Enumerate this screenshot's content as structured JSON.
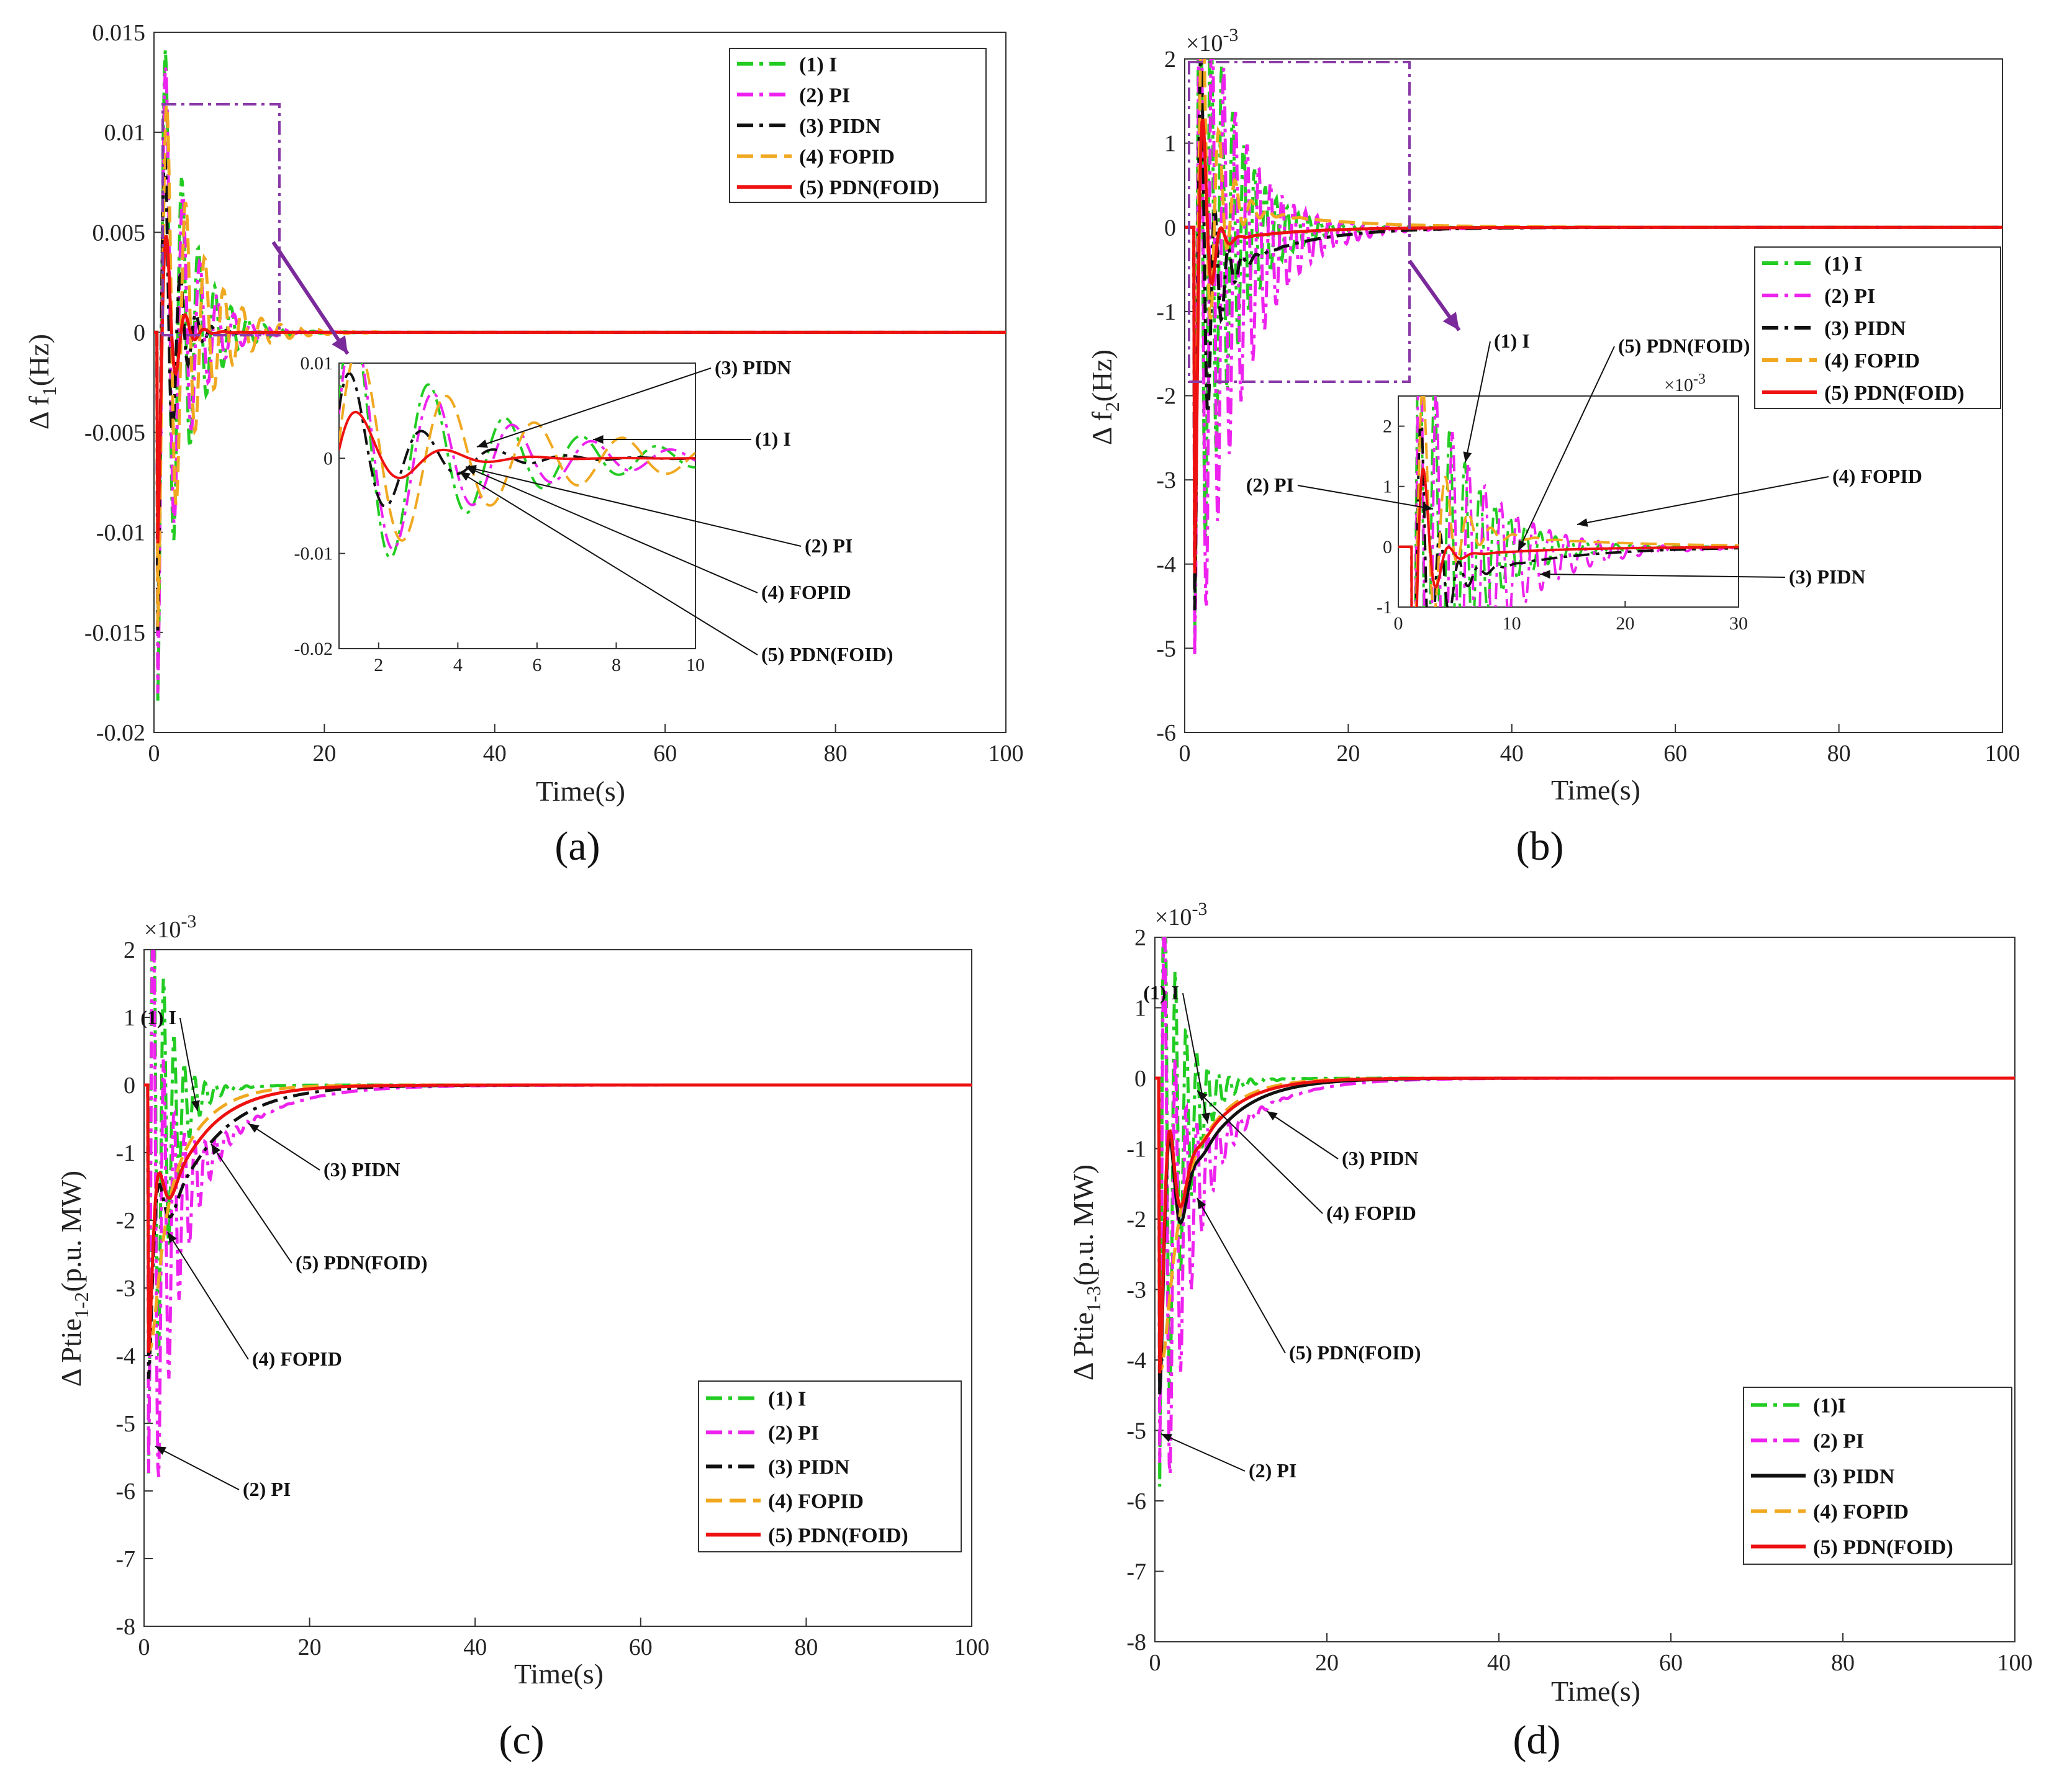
{
  "figure": {
    "colors": {
      "I": "#22cc22",
      "PI": "#ee22ee",
      "PIDN": "#111111",
      "FOPID": "#f0a820",
      "PDN(FOID)": "#ee1111",
      "zoom_box": "#8a3aa8",
      "zoom_arrow": "#7a2a9a"
    }
  },
  "chart_data": [
    {
      "id": "a",
      "type": "line",
      "panel_label": "(a)",
      "xlabel": "Time(s)",
      "ylabel": "Δ f",
      "ylabel_sub": "1",
      "ylabel_unit": "(Hz)",
      "exponent": "",
      "xlim": [
        0,
        100
      ],
      "ylim": [
        -0.02,
        0.015
      ],
      "xticks": [
        0,
        20,
        40,
        60,
        80,
        100
      ],
      "xtick_labels": [
        "0",
        "20",
        "40",
        "60",
        "80",
        "100"
      ],
      "yticks": [
        -0.02,
        -0.015,
        -0.01,
        -0.005,
        0,
        0.005,
        0.01,
        0.015
      ],
      "ytick_labels": [
        "-0.02",
        "-0.015",
        "-0.01",
        "-0.005",
        "0",
        "0.005",
        "0.01",
        "0.015"
      ],
      "legend": {
        "position": "top-right",
        "entries": [
          "(1) I",
          "(2) PI",
          "(3) PIDN",
          "(4) FOPID",
          "(5) PDN(FOID)"
        ]
      },
      "series": [
        {
          "name": "(1) I",
          "key": "I",
          "dash": "dashdot",
          "amp": -0.019,
          "t0": 0.4,
          "freq": 0.52,
          "tau": 3.2,
          "bias_amp": 0,
          "bias_tau": 1
        },
        {
          "name": "(2) PI",
          "key": "PI",
          "dash": "dashdot",
          "amp": -0.0185,
          "t0": 0.4,
          "freq": 0.5,
          "tau": 3.0,
          "bias_amp": 0,
          "bias_tau": 1
        },
        {
          "name": "(3) PIDN",
          "key": "PIDN",
          "dash": "dashdot",
          "amp": -0.0155,
          "t0": 0.4,
          "freq": 0.55,
          "tau": 1.6,
          "bias_amp": 0,
          "bias_tau": 1
        },
        {
          "name": "(4) FOPID",
          "key": "FOPID",
          "dash": "dashed",
          "amp": -0.015,
          "t0": 0.4,
          "freq": 0.45,
          "tau": 4.0,
          "bias_amp": 0,
          "bias_tau": 1
        },
        {
          "name": "(5) PDN(FOID)",
          "key": "PDN(FOID)",
          "dash": "solid",
          "amp": -0.011,
          "t0": 0.4,
          "freq": 0.45,
          "tau": 1.3,
          "bias_amp": 0,
          "bias_tau": 1
        }
      ],
      "inset": {
        "xlim": [
          1,
          10
        ],
        "ylim": [
          -0.02,
          0.01
        ],
        "xticks": [
          2,
          4,
          6,
          8,
          10
        ],
        "xtick_labels": [
          "2",
          "4",
          "6",
          "8",
          "10"
        ],
        "yticks": [
          -0.02,
          -0.01,
          0,
          0.01
        ],
        "ytick_labels": [
          "-0.02",
          "-0.01",
          "0",
          "0.01"
        ],
        "exponent": ""
      },
      "annotations": [
        "(3) PIDN",
        "(1) I",
        "(2) PI",
        "(4) FOPID",
        "(5) PDN(FOID)"
      ]
    },
    {
      "id": "b",
      "type": "line",
      "panel_label": "(b)",
      "xlabel": "Time(s)",
      "ylabel": "Δ f",
      "ylabel_sub": "2",
      "ylabel_unit": "(Hz)",
      "exponent": "×10",
      "exponent_power": "-3",
      "xlim": [
        0,
        100
      ],
      "ylim": [
        -6,
        2
      ],
      "xticks": [
        0,
        20,
        40,
        60,
        80,
        100
      ],
      "xtick_labels": [
        "0",
        "20",
        "40",
        "60",
        "80",
        "100"
      ],
      "yticks": [
        -6,
        -5,
        -4,
        -3,
        -2,
        -1,
        0,
        1,
        2
      ],
      "ytick_labels": [
        "-6",
        "-5",
        "-4",
        "-3",
        "-2",
        "-1",
        "0",
        "1",
        "2"
      ],
      "legend": {
        "position": "right",
        "entries": [
          "(1) I",
          "(2) PI",
          "(3) PIDN",
          "(4) FOPID",
          "(5) PDN(FOID)"
        ]
      },
      "series": [
        {
          "name": "(1) I",
          "key": "I",
          "dash": "dashdot",
          "amp": -4.9,
          "t0": 1.2,
          "freq": 0.75,
          "tau": 4.0,
          "bias_amp": -0.3,
          "bias_tau": 6
        },
        {
          "name": "(2) PI",
          "key": "PI",
          "dash": "dashdot",
          "amp": -5.1,
          "t0": 1.2,
          "freq": 0.7,
          "tau": 5.0,
          "bias_amp": -1.0,
          "bias_tau": 7
        },
        {
          "name": "(3) PIDN",
          "key": "PIDN",
          "dash": "dashdot",
          "amp": -4.6,
          "t0": 1.2,
          "freq": 0.6,
          "tau": 1.5,
          "bias_amp": -0.9,
          "bias_tau": 8
        },
        {
          "name": "(4) FOPID",
          "key": "FOPID",
          "dash": "dashed",
          "amp": -3.8,
          "t0": 1.2,
          "freq": 0.5,
          "tau": 2.0,
          "bias_amp": 0.4,
          "bias_tau": 10
        },
        {
          "name": "(5) PDN(FOID)",
          "key": "PDN(FOID)",
          "dash": "solid",
          "amp": -4.2,
          "t0": 1.2,
          "freq": 0.45,
          "tau": 1.0,
          "bias_amp": -0.25,
          "bias_tau": 8
        }
      ],
      "inset": {
        "xlim": [
          0,
          30
        ],
        "ylim": [
          -1,
          2.5
        ],
        "xticks": [
          0,
          10,
          20,
          30
        ],
        "xtick_labels": [
          "0",
          "10",
          "20",
          "30"
        ],
        "yticks": [
          -1,
          0,
          1,
          2
        ],
        "ytick_labels": [
          "-1",
          "0",
          "1",
          "2"
        ],
        "exponent": "×10",
        "exponent_power": "-3"
      },
      "annotations": [
        "(1) I",
        "(5) PDN(FOID)",
        "(2) PI",
        "(4) FOPID",
        "(3) PIDN"
      ]
    },
    {
      "id": "c",
      "type": "line",
      "panel_label": "(c)",
      "xlabel": "Time(s)",
      "ylabel": "Δ Ptie",
      "ylabel_sub": "1-2",
      "ylabel_unit": "(p.u. MW)",
      "exponent": "×10",
      "exponent_power": "-3",
      "xlim": [
        0,
        100
      ],
      "ylim": [
        -8,
        2
      ],
      "xticks": [
        0,
        20,
        40,
        60,
        80,
        100
      ],
      "xtick_labels": [
        "0",
        "20",
        "40",
        "60",
        "80",
        "100"
      ],
      "yticks": [
        -8,
        -7,
        -6,
        -5,
        -4,
        -3,
        -2,
        -1,
        0,
        1,
        2
      ],
      "ytick_labels": [
        "-8",
        "-7",
        "-6",
        "-5",
        "-4",
        "-3",
        "-2",
        "-1",
        "0",
        "1",
        "2"
      ],
      "legend": {
        "position": "bottom-right",
        "entries": [
          "(1) I",
          "(2) PI",
          "(3) PIDN",
          "(4) FOPID",
          "(5) PDN(FOID)"
        ]
      },
      "series": [
        {
          "name": "(1) I",
          "key": "I",
          "dash": "dashdot",
          "amp": -6.0,
          "t0": 0.5,
          "freq": 0.8,
          "tau": 2.0,
          "bias_amp": -1.5,
          "bias_tau": 3
        },
        {
          "name": "(2) PI",
          "key": "PI",
          "dash": "dashdot",
          "amp": -5.8,
          "t0": 0.5,
          "freq": 0.8,
          "tau": 2.5,
          "bias_amp": -3.2,
          "bias_tau": 7
        },
        {
          "name": "(3) PIDN",
          "key": "PIDN",
          "dash": "dashdot",
          "amp": -4.4,
          "t0": 0.5,
          "freq": 0.3,
          "tau": 0.8,
          "bias_amp": -3.0,
          "bias_tau": 6
        },
        {
          "name": "(4) FOPID",
          "key": "FOPID",
          "dash": "dashed",
          "amp": -3.8,
          "t0": 0.5,
          "freq": 0.06,
          "tau": 1.0,
          "bias_amp": -3.0,
          "bias_tau": 4
        },
        {
          "name": "(5) PDN(FOID)",
          "key": "PDN(FOID)",
          "dash": "solid",
          "amp": -4.0,
          "t0": 0.5,
          "freq": 0.3,
          "tau": 0.8,
          "bias_amp": -2.8,
          "bias_tau": 5
        }
      ],
      "annotations": [
        "(1) I",
        "(3) PIDN",
        "(5) PDN(FOID)",
        "(4) FOPID",
        "(2) PI"
      ]
    },
    {
      "id": "d",
      "type": "line",
      "panel_label": "(d)",
      "xlabel": "Time(s)",
      "ylabel": "Δ Ptie",
      "ylabel_sub": "1-3",
      "ylabel_unit": "(p.u. MW)",
      "exponent": "×10",
      "exponent_power": "-3",
      "xlim": [
        0,
        100
      ],
      "ylim": [
        -8,
        2
      ],
      "xticks": [
        0,
        20,
        40,
        60,
        80,
        100
      ],
      "xtick_labels": [
        "0",
        "20",
        "40",
        "60",
        "80",
        "100"
      ],
      "yticks": [
        -8,
        -7,
        -6,
        -5,
        -4,
        -3,
        -2,
        -1,
        0,
        1,
        2
      ],
      "ytick_labels": [
        "-8",
        "-7",
        "-6",
        "-5",
        "-4",
        "-3",
        "-2",
        "-1",
        "0",
        "1",
        "2"
      ],
      "legend": {
        "position": "bottom-right",
        "entries": [
          "(1)I",
          "(2) PI",
          "(3) PIDN",
          "(4) FOPID",
          "(5) PDN(FOID)"
        ]
      },
      "series": [
        {
          "name": "(1)I",
          "key": "I",
          "dash": "dashdot",
          "amp": -6.0,
          "t0": 0.5,
          "freq": 0.8,
          "tau": 2.2,
          "bias_amp": -2.0,
          "bias_tau": 3
        },
        {
          "name": "(2) PI",
          "key": "PI",
          "dash": "dashdot",
          "amp": -5.5,
          "t0": 0.5,
          "freq": 0.8,
          "tau": 2.5,
          "bias_amp": -3.3,
          "bias_tau": 6
        },
        {
          "name": "(3) PIDN",
          "key": "PIDN",
          "dash": "solid",
          "amp": -4.5,
          "t0": 0.5,
          "freq": 0.35,
          "tau": 1.0,
          "bias_amp": -3.0,
          "bias_tau": 5
        },
        {
          "name": "(4) FOPID",
          "key": "FOPID",
          "dash": "dashed",
          "amp": -4.0,
          "t0": 0.5,
          "freq": 0.06,
          "tau": 1.0,
          "bias_amp": -3.2,
          "bias_tau": 4
        },
        {
          "name": "(5) PDN(FOID)",
          "key": "PDN(FOID)",
          "dash": "solid",
          "amp": -4.2,
          "t0": 0.5,
          "freq": 0.35,
          "tau": 1.0,
          "bias_amp": -2.8,
          "bias_tau": 4.5
        }
      ],
      "annotations": [
        "(1) I",
        "(3) PIDN",
        "(4) FOPID",
        "(5) PDN(FOID)",
        "(2) PI"
      ]
    }
  ]
}
